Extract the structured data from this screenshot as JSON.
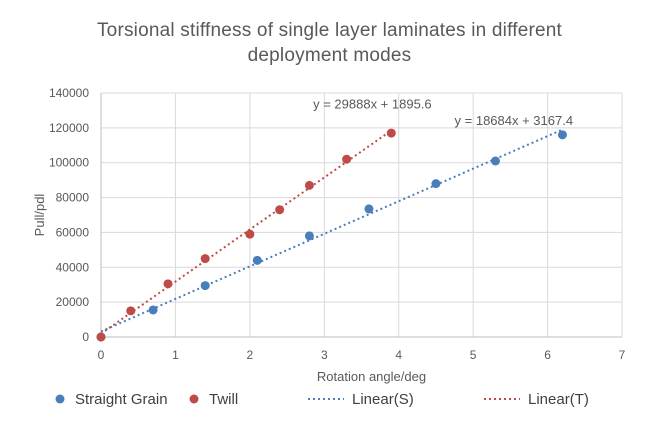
{
  "title_line1": "Torsional stiffness of single layer laminates in different",
  "title_line2": "deployment modes",
  "colors": {
    "straight": "#4a7ebb",
    "twill": "#be4b48",
    "grid": "#d9d9d9",
    "axis": "#bfbfbf",
    "text": "#595959"
  },
  "chart_data": {
    "type": "scatter",
    "title": "Torsional stiffness of single layer laminates in different deployment modes",
    "xlabel": "Rotation angle/deg",
    "ylabel": "Pull/pdl",
    "xlim": [
      0,
      7
    ],
    "ylim": [
      0,
      140000
    ],
    "xticks": [
      0,
      1,
      2,
      3,
      4,
      5,
      6,
      7
    ],
    "yticks": [
      0,
      20000,
      40000,
      60000,
      80000,
      100000,
      120000,
      140000
    ],
    "grid": true,
    "legend_position": "bottom",
    "series": [
      {
        "name": "Straight Grain",
        "x": [
          0,
          0.7,
          1.4,
          2.1,
          2.8,
          3.6,
          4.5,
          5.3,
          6.2
        ],
        "y": [
          0,
          15500,
          29500,
          44000,
          58000,
          73500,
          88000,
          101000,
          116000
        ]
      },
      {
        "name": "Twill",
        "x": [
          0,
          0.4,
          0.9,
          1.4,
          2.0,
          2.4,
          2.8,
          3.3,
          3.9
        ],
        "y": [
          0,
          15000,
          30500,
          45000,
          59000,
          73000,
          87000,
          102000,
          117000
        ]
      }
    ],
    "trendlines": [
      {
        "name": "Linear(S)",
        "of": "Straight Grain",
        "slope": 18684,
        "intercept": 3167.4,
        "x_range": [
          0,
          6.2
        ],
        "equation": "y = 18684x + 3167.4"
      },
      {
        "name": "Linear(T)",
        "of": "Twill",
        "slope": 29888,
        "intercept": 1895.6,
        "x_range": [
          0,
          3.9
        ],
        "equation": "y = 29888x + 1895.6"
      }
    ]
  }
}
